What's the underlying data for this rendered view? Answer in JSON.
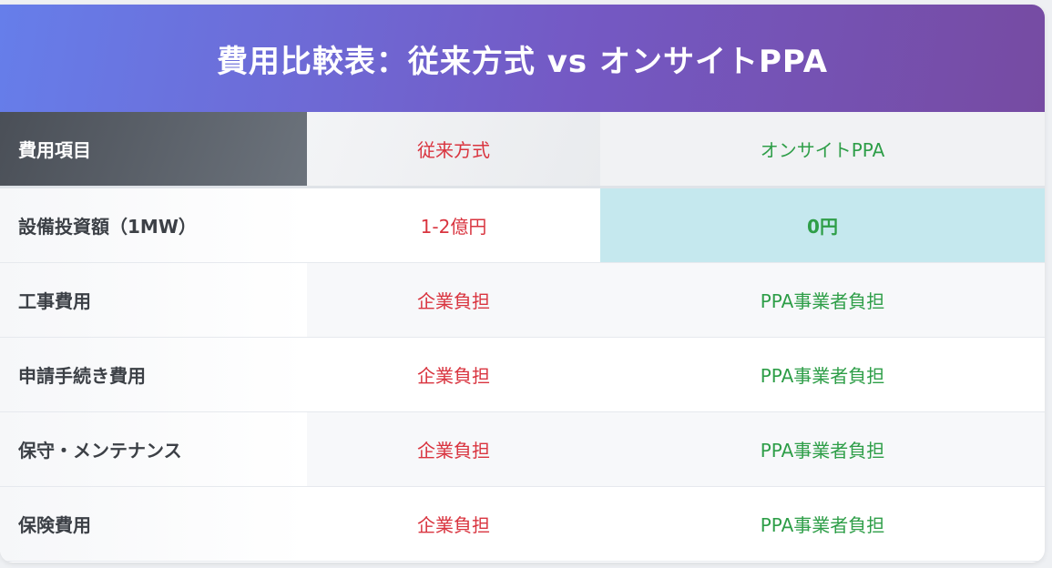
{
  "title": "費用比較表：従来方式 vs オンサイトPPA",
  "header": {
    "item": "費用項目",
    "conventional": "従来方式",
    "ppa": "オンサイトPPA"
  },
  "rows": [
    {
      "label": "設備投資額（1MW）",
      "conventional": "1-2億円",
      "ppa": "0円"
    },
    {
      "label": "工事費用",
      "conventional": "企業負担",
      "ppa": "PPA事業者負担"
    },
    {
      "label": "申請手続き費用",
      "conventional": "企業負担",
      "ppa": "PPA事業者負担"
    },
    {
      "label": "保守・メンテナンス",
      "conventional": "企業負担",
      "ppa": "PPA事業者負担"
    },
    {
      "label": "保険費用",
      "conventional": "企業負担",
      "ppa": "PPA事業者負担"
    }
  ],
  "colors": {
    "conventional": "#d9343f",
    "ppa": "#2e9e48",
    "highlight": "#c5e8ee"
  }
}
